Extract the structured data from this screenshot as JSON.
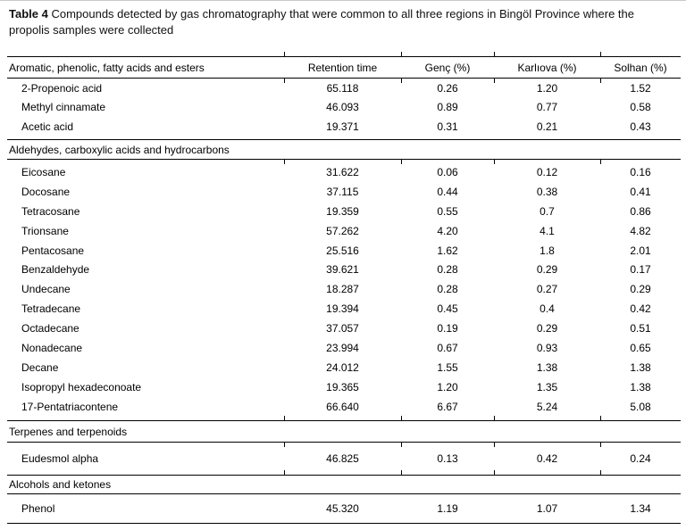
{
  "colors": {
    "text": "#000000",
    "rule": "#000000",
    "background": "#ffffff",
    "page_edge": "#c8c8c8"
  },
  "caption": {
    "label": "Table 4",
    "text": " Compounds detected by gas chromatography that were common to all three regions in Bingöl Province where the propolis samples were collected"
  },
  "table": {
    "header": {
      "c1": "Aromatic, phenolic, fatty acids and esters",
      "c2": "Retention time",
      "c3": "Genç (%)",
      "c4": "Karlıova (%)",
      "c5": "Solhan (%)"
    },
    "sections": [
      {
        "rows": [
          {
            "name": "2-Propenoic acid",
            "rt": "65.118",
            "genc": "0.26",
            "karliova": "1.20",
            "solhan": "1.52"
          },
          {
            "name": "Methyl cinnamate",
            "rt": "46.093",
            "genc": "0.89",
            "karliova": "0.77",
            "solhan": "0.58"
          },
          {
            "name": "Acetic acid",
            "rt": "19.371",
            "genc": "0.31",
            "karliova": "0.21",
            "solhan": "0.43"
          }
        ]
      },
      {
        "label": "Aldehydes, carboxylic acids and hydrocarbons",
        "rows": [
          {
            "name": "Eicosane",
            "rt": "31.622",
            "genc": "0.06",
            "karliova": "0.12",
            "solhan": "0.16"
          },
          {
            "name": "Docosane",
            "rt": "37.115",
            "genc": "0.44",
            "karliova": "0.38",
            "solhan": "0.41"
          },
          {
            "name": "Tetracosane",
            "rt": "19.359",
            "genc": "0.55",
            "karliova": "0.7",
            "solhan": "0.86"
          },
          {
            "name": "Trionsane",
            "rt": "57.262",
            "genc": "4.20",
            "karliova": "4.1",
            "solhan": "4.82"
          },
          {
            "name": "Pentacosane",
            "rt": "25.516",
            "genc": "1.62",
            "karliova": "1.8",
            "solhan": "2.01"
          },
          {
            "name": "Benzaldehyde",
            "rt": "39.621",
            "genc": "0.28",
            "karliova": "0.29",
            "solhan": "0.17"
          },
          {
            "name": "Undecane",
            "rt": "18.287",
            "genc": "0.28",
            "karliova": "0.27",
            "solhan": "0.29"
          },
          {
            "name": "Tetradecane",
            "rt": "19.394",
            "genc": "0.45",
            "karliova": "0.4",
            "solhan": "0.42"
          },
          {
            "name": "Octadecane",
            "rt": "37.057",
            "genc": "0.19",
            "karliova": "0.29",
            "solhan": "0.51"
          },
          {
            "name": "Nonadecane",
            "rt": "23.994",
            "genc": "0.67",
            "karliova": "0.93",
            "solhan": "0.65"
          },
          {
            "name": "Decane",
            "rt": "24.012",
            "genc": "1.55",
            "karliova": "1.38",
            "solhan": "1.38"
          },
          {
            "name": "Isopropyl hexadeconoate",
            "rt": "19.365",
            "genc": "1.20",
            "karliova": "1.35",
            "solhan": "1.38"
          },
          {
            "name": "17-Pentatriacontene",
            "rt": "66.640",
            "genc": "6.67",
            "karliova": "5.24",
            "solhan": "5.08"
          }
        ]
      },
      {
        "label": "Terpenes and terpenoids",
        "rows": [
          {
            "name": "Eudesmol alpha",
            "rt": "46.825",
            "genc": "0.13",
            "karliova": "0.42",
            "solhan": "0.24"
          }
        ]
      },
      {
        "label": "Alcohols and ketones",
        "rows": [
          {
            "name": "Phenol",
            "rt": "45.320",
            "genc": "1.19",
            "karliova": "1.07",
            "solhan": "1.34"
          }
        ]
      }
    ]
  }
}
